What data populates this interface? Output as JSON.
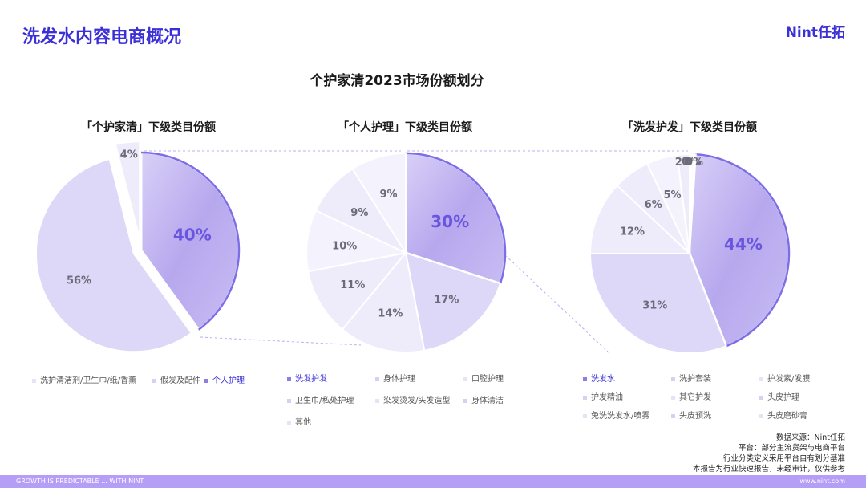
{
  "header": {
    "title": "洗发水内容电商概况",
    "brand": "Nint任拓"
  },
  "chart_data": [
    {
      "type": "pie",
      "title": "「个护家清」下级类目份额",
      "labels": [
        "洗护清洁剂/卫生巾/纸/香薰",
        "假发及配件",
        "个人护理"
      ],
      "values": [
        56,
        4,
        40
      ],
      "value_labels": [
        "56%",
        "4%",
        "40%"
      ],
      "highlight": "个人护理"
    },
    {
      "type": "pie",
      "title": "「个人护理」下级类目份额",
      "labels": [
        "洗发护发",
        "身体护理",
        "口腔护理",
        "卫生巾/私处护理",
        "染发烫发/头发造型",
        "身体清洁",
        "其他"
      ],
      "values": [
        30,
        17,
        14,
        11,
        10,
        9,
        9
      ],
      "value_labels": [
        "30%",
        "17%",
        "14%",
        "11%",
        "10%",
        "9%",
        "9%"
      ],
      "highlight": "洗发护发"
    },
    {
      "type": "pie",
      "title": "「洗发护发」下级类目份额",
      "labels": [
        "洗发水",
        "洗护套装",
        "护发素/发膜",
        "护发精油",
        "其它护发",
        "头皮护理",
        "免洗洗发水/喷雾",
        "头皮预洗",
        "头皮磨砂膏"
      ],
      "values": [
        44,
        31,
        12,
        6,
        5,
        2,
        0,
        0,
        0
      ],
      "value_labels": [
        "44%",
        "31%",
        "12%",
        "6%",
        "5%",
        "2%",
        "0%",
        "0%",
        "0%"
      ],
      "highlight": "洗发水"
    }
  ],
  "main_title": "个护家清2023市场份额划分",
  "colors": {
    "accent": "#3b2fd6",
    "highlight_fill": "#c9bdf2",
    "slice_fill": "#ddd8f7",
    "light_fill": "#eeecfb",
    "pale_fill": "#f4f3fd",
    "legend_band": "#b59ff6"
  },
  "notes": [
    "数据来源：Nint任拓",
    "平台：部分主流货架与电商平台",
    "行业分类定义采用平台自有划分基准",
    "本报告为行业快速报告，未经审计，仅供参考"
  ],
  "footer": {
    "left": "GROWTH IS PREDICTABLE ... WITH NINT",
    "right": "www.nint.com"
  }
}
